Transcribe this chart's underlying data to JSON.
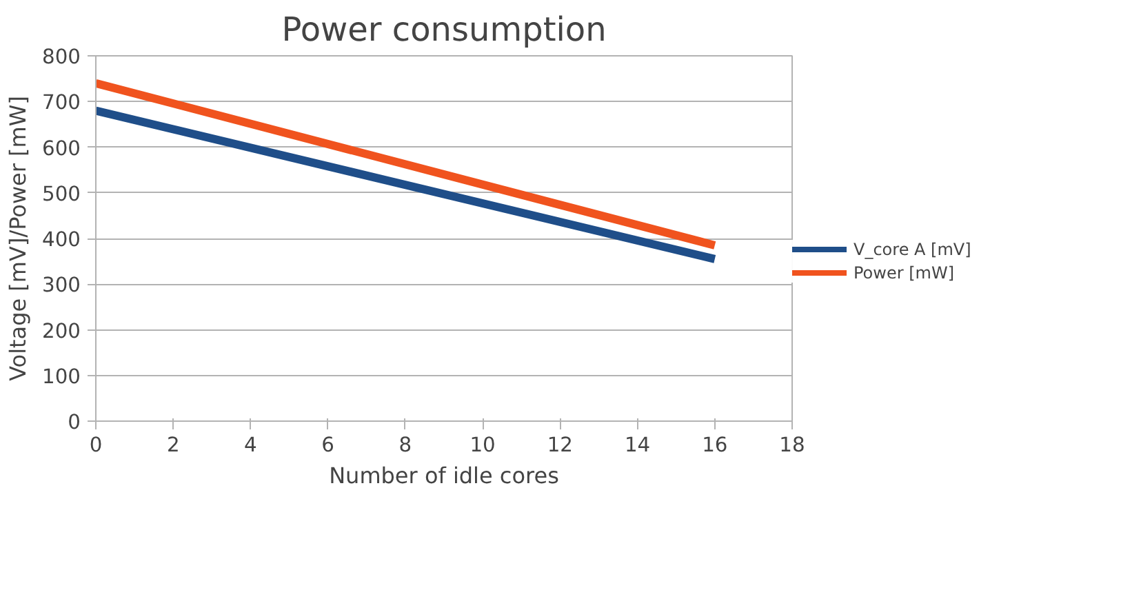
{
  "chart_data": {
    "type": "line",
    "title": "Power consumption",
    "xlabel": "Number of idle cores",
    "ylabel": "Voltage [mV]/Power [mW]",
    "x": [
      0,
      16
    ],
    "series": [
      {
        "name": "V_core A [mV]",
        "color": "#1f4e89",
        "values": [
          680,
          355
        ]
      },
      {
        "name": "Power [mW]",
        "color": "#f0531e",
        "values": [
          740,
          385
        ]
      }
    ],
    "xlim": [
      0,
      18
    ],
    "xticks": [
      0,
      2,
      4,
      6,
      8,
      10,
      12,
      14,
      16,
      18
    ],
    "ylim": [
      0,
      800
    ],
    "yticks": [
      0,
      100,
      200,
      300,
      400,
      500,
      600,
      700,
      800
    ],
    "grid": "y",
    "legend": "right",
    "line_style": "solid"
  }
}
